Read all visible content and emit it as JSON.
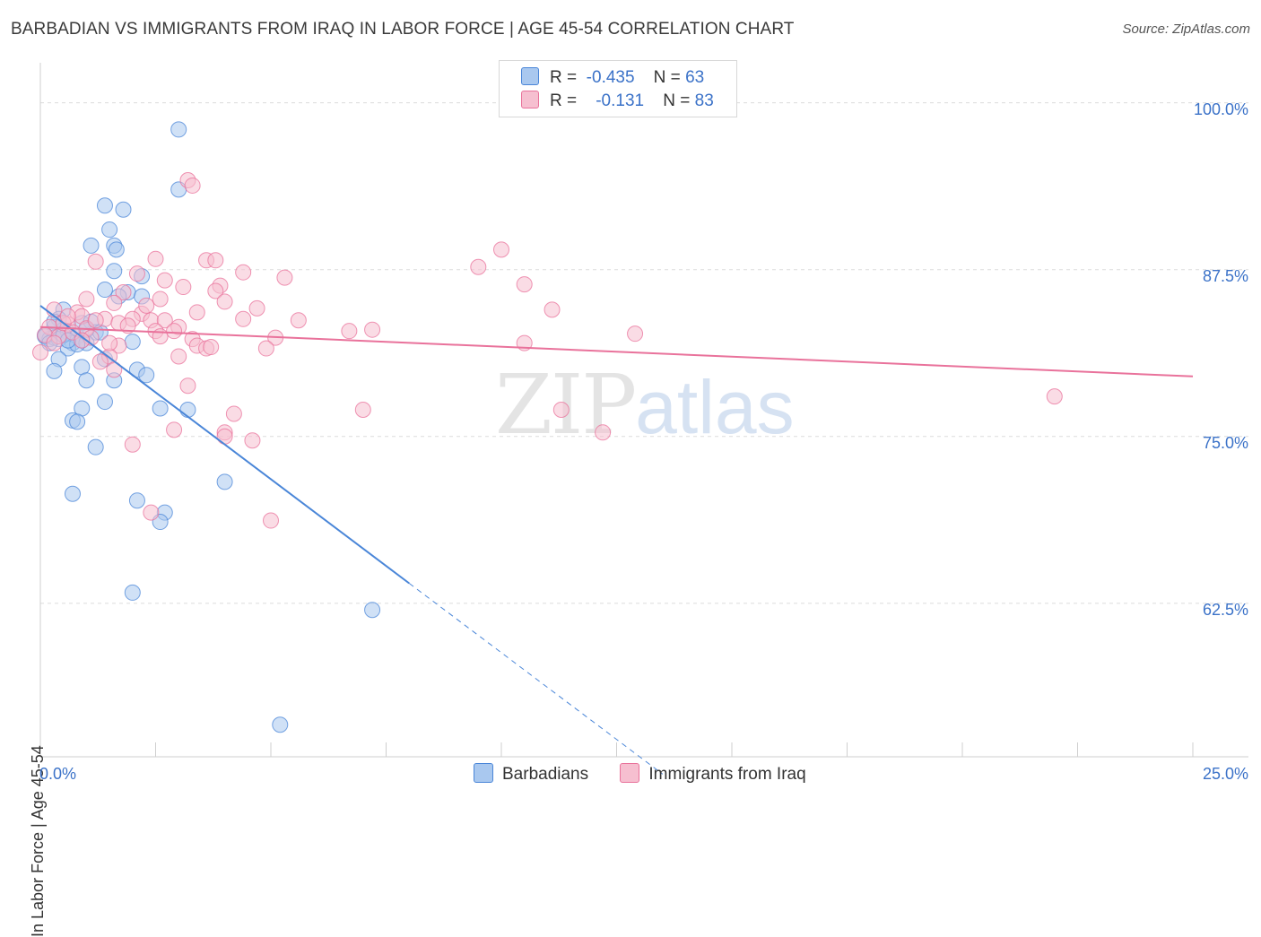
{
  "title": "BARBADIAN VS IMMIGRANTS FROM IRAQ IN LABOR FORCE | AGE 45-54 CORRELATION CHART",
  "source": "Source: ZipAtlas.com",
  "watermark": {
    "zip": "ZIP",
    "atlas": "atlas"
  },
  "legend_box": {
    "rows": [
      {
        "r_label": "R =",
        "r_value": "-0.435",
        "n_label": "N =",
        "n_value": "63",
        "color": "#a9c8ef"
      },
      {
        "r_label": "R =",
        "r_value": "-0.131",
        "n_label": "N =",
        "n_value": "83",
        "color": "#f6bfd0"
      }
    ]
  },
  "chart_data": {
    "type": "scatter",
    "title": "BARBADIAN VS IMMIGRANTS FROM IRAQ IN LABOR FORCE | AGE 45-54 CORRELATION CHART",
    "xlabel": "",
    "ylabel": "In Labor Force | Age 45-54",
    "xlim": [
      0,
      25
    ],
    "ylim": [
      51,
      103
    ],
    "x_tick_labels": [
      "0.0%",
      "25.0%"
    ],
    "y_ticks": [
      62.5,
      75.0,
      87.5,
      100.0
    ],
    "y_tick_labels": [
      "62.5%",
      "75.0%",
      "87.5%",
      "100.0%"
    ],
    "grid": "horizontal dashed",
    "legend_position": "bottom-center",
    "series": [
      {
        "name": "Barbadians",
        "color": "#4a86d8",
        "fill": "#a9c8ef",
        "r": -0.435,
        "n": 63,
        "trend": {
          "x0": 0.0,
          "y0": 84.8,
          "x1": 8.0,
          "y1": 64.0,
          "dashed_to_x": 13.5
        },
        "points": [
          [
            3.0,
            98.0
          ],
          [
            3.0,
            93.5
          ],
          [
            1.4,
            92.3
          ],
          [
            1.8,
            92.0
          ],
          [
            1.5,
            90.5
          ],
          [
            1.1,
            89.3
          ],
          [
            1.6,
            89.3
          ],
          [
            1.65,
            89.0
          ],
          [
            1.6,
            87.4
          ],
          [
            2.2,
            87.0
          ],
          [
            1.4,
            86.0
          ],
          [
            1.9,
            85.8
          ],
          [
            2.2,
            85.5
          ],
          [
            0.5,
            84.5
          ],
          [
            0.4,
            83.8
          ],
          [
            0.9,
            83.5
          ],
          [
            1.1,
            83.6
          ],
          [
            0.3,
            83.2
          ],
          [
            0.5,
            83.0
          ],
          [
            0.1,
            82.6
          ],
          [
            0.2,
            82.3
          ],
          [
            0.6,
            82.8
          ],
          [
            0.8,
            82.5
          ],
          [
            1.2,
            82.8
          ],
          [
            1.3,
            82.8
          ],
          [
            0.7,
            82.0
          ],
          [
            0.9,
            82.2
          ],
          [
            0.3,
            82.4
          ],
          [
            0.1,
            82.5
          ],
          [
            0.4,
            82.3
          ],
          [
            1.0,
            82.0
          ],
          [
            0.6,
            81.6
          ],
          [
            2.0,
            82.1
          ],
          [
            0.4,
            80.8
          ],
          [
            1.4,
            80.8
          ],
          [
            0.9,
            80.2
          ],
          [
            2.1,
            80.0
          ],
          [
            2.3,
            79.6
          ],
          [
            0.3,
            79.9
          ],
          [
            1.0,
            79.2
          ],
          [
            1.6,
            79.2
          ],
          [
            1.4,
            77.6
          ],
          [
            2.6,
            77.1
          ],
          [
            3.2,
            77.0
          ],
          [
            0.9,
            77.1
          ],
          [
            0.7,
            76.2
          ],
          [
            0.8,
            76.1
          ],
          [
            1.2,
            74.2
          ],
          [
            4.0,
            71.6
          ],
          [
            0.7,
            70.7
          ],
          [
            2.1,
            70.2
          ],
          [
            2.7,
            69.3
          ],
          [
            2.6,
            68.6
          ],
          [
            2.0,
            63.3
          ],
          [
            7.2,
            62.0
          ],
          [
            5.2,
            53.4
          ],
          [
            0.2,
            82.0
          ],
          [
            0.5,
            82.6
          ],
          [
            1.0,
            83.0
          ],
          [
            0.8,
            81.9
          ],
          [
            0.3,
            83.6
          ],
          [
            1.7,
            85.5
          ],
          [
            0.6,
            82.2
          ]
        ]
      },
      {
        "name": "Immigrants from Iraq",
        "color": "#e9729b",
        "fill": "#f6bfd0",
        "r": -0.131,
        "n": 83,
        "trend": {
          "x0": 0.0,
          "y0": 83.2,
          "x1": 25.0,
          "y1": 79.5
        },
        "points": [
          [
            3.2,
            94.2
          ],
          [
            3.3,
            93.8
          ],
          [
            10.0,
            89.0
          ],
          [
            2.5,
            88.3
          ],
          [
            1.2,
            88.1
          ],
          [
            3.6,
            88.2
          ],
          [
            3.8,
            88.2
          ],
          [
            9.5,
            87.7
          ],
          [
            4.4,
            87.3
          ],
          [
            2.1,
            87.2
          ],
          [
            2.7,
            86.7
          ],
          [
            5.3,
            86.9
          ],
          [
            10.5,
            86.4
          ],
          [
            3.1,
            86.2
          ],
          [
            3.9,
            86.3
          ],
          [
            3.8,
            85.9
          ],
          [
            1.8,
            85.8
          ],
          [
            1.0,
            85.3
          ],
          [
            2.6,
            85.3
          ],
          [
            1.6,
            85.0
          ],
          [
            4.0,
            85.1
          ],
          [
            0.3,
            84.5
          ],
          [
            0.8,
            84.3
          ],
          [
            2.2,
            84.2
          ],
          [
            3.4,
            84.3
          ],
          [
            4.7,
            84.6
          ],
          [
            11.1,
            84.5
          ],
          [
            0.9,
            84.0
          ],
          [
            1.4,
            83.8
          ],
          [
            2.0,
            83.8
          ],
          [
            2.4,
            83.7
          ],
          [
            1.7,
            83.5
          ],
          [
            2.7,
            83.7
          ],
          [
            4.4,
            83.8
          ],
          [
            5.6,
            83.7
          ],
          [
            0.2,
            83.2
          ],
          [
            0.6,
            83.4
          ],
          [
            1.0,
            83.1
          ],
          [
            1.9,
            83.3
          ],
          [
            2.5,
            82.9
          ],
          [
            3.0,
            83.2
          ],
          [
            6.7,
            82.9
          ],
          [
            7.2,
            83.0
          ],
          [
            12.9,
            82.7
          ],
          [
            0.1,
            82.6
          ],
          [
            0.4,
            82.5
          ],
          [
            1.1,
            82.4
          ],
          [
            2.6,
            82.5
          ],
          [
            3.3,
            82.3
          ],
          [
            5.1,
            82.4
          ],
          [
            0.3,
            82.0
          ],
          [
            1.7,
            81.8
          ],
          [
            3.4,
            81.8
          ],
          [
            3.6,
            81.6
          ],
          [
            3.7,
            81.7
          ],
          [
            4.9,
            81.6
          ],
          [
            10.5,
            82.0
          ],
          [
            0.0,
            81.3
          ],
          [
            1.5,
            81.0
          ],
          [
            3.0,
            81.0
          ],
          [
            1.3,
            80.6
          ],
          [
            1.6,
            80.0
          ],
          [
            3.2,
            78.8
          ],
          [
            22.0,
            78.0
          ],
          [
            4.2,
            76.7
          ],
          [
            7.0,
            77.0
          ],
          [
            11.3,
            77.0
          ],
          [
            2.9,
            75.5
          ],
          [
            4.0,
            75.3
          ],
          [
            4.0,
            75.0
          ],
          [
            4.6,
            74.7
          ],
          [
            12.2,
            75.3
          ],
          [
            2.0,
            74.4
          ],
          [
            2.4,
            69.3
          ],
          [
            5.0,
            68.7
          ],
          [
            0.5,
            83.5
          ],
          [
            0.7,
            82.8
          ],
          [
            1.2,
            83.7
          ],
          [
            2.9,
            82.9
          ],
          [
            0.6,
            84.0
          ],
          [
            1.5,
            82.0
          ],
          [
            2.3,
            84.8
          ],
          [
            0.9,
            82.2
          ]
        ]
      }
    ]
  }
}
